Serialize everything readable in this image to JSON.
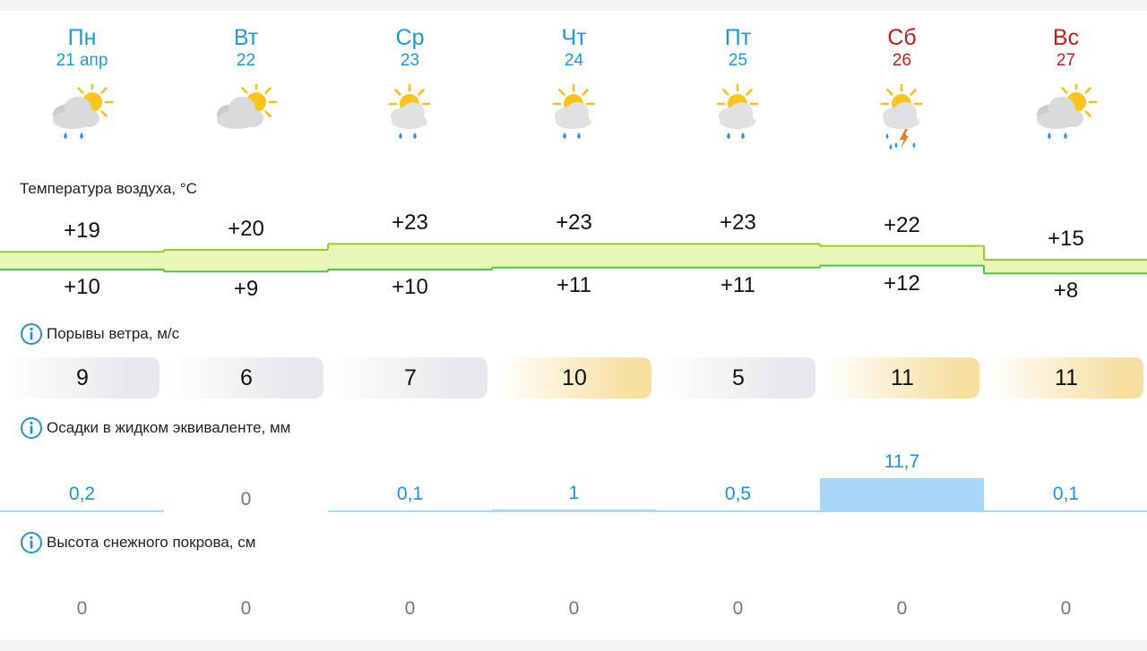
{
  "days": [
    {
      "name": "Пн",
      "date": "21 апр",
      "weekend": false,
      "icon": "partly-cloudy-rain-icon"
    },
    {
      "name": "Вт",
      "date": "22",
      "weekend": false,
      "icon": "partly-cloudy-icon"
    },
    {
      "name": "Ср",
      "date": "23",
      "weekend": false,
      "icon": "sun-cloud-rain-icon"
    },
    {
      "name": "Чт",
      "date": "24",
      "weekend": false,
      "icon": "sun-cloud-rain-icon"
    },
    {
      "name": "Пт",
      "date": "25",
      "weekend": false,
      "icon": "sun-cloud-rain-icon"
    },
    {
      "name": "Сб",
      "date": "26",
      "weekend": true,
      "icon": "sun-cloud-thunderstorm-icon"
    },
    {
      "name": "Вс",
      "date": "27",
      "weekend": true,
      "icon": "partly-cloudy-rain-icon"
    }
  ],
  "sections": {
    "temperature_label": "Температура воздуха, °C",
    "wind_label": "Порывы ветра, м/с",
    "precip_label": "Осадки в жидком эквиваленте, мм",
    "snow_label": "Высота снежного покрова, см"
  },
  "temperature": {
    "max": [
      "+19",
      "+20",
      "+23",
      "+23",
      "+23",
      "+22",
      "+15"
    ],
    "min": [
      "+10",
      "+9",
      "+10",
      "+11",
      "+11",
      "+12",
      "+8"
    ],
    "max_values": [
      19,
      20,
      23,
      23,
      23,
      22,
      15
    ],
    "min_values": [
      10,
      9,
      10,
      11,
      11,
      12,
      8
    ]
  },
  "wind": {
    "labels": [
      "9",
      "6",
      "7",
      "10",
      "5",
      "11",
      "11"
    ],
    "values": [
      9,
      6,
      7,
      10,
      5,
      11,
      11
    ],
    "strong": [
      false,
      false,
      false,
      true,
      false,
      true,
      true
    ]
  },
  "precipitation": {
    "labels": [
      "0,2",
      "0",
      "0,1",
      "1",
      "0,5",
      "11,7",
      "0,1"
    ],
    "values": [
      0.2,
      0,
      0.1,
      1,
      0.5,
      11.7,
      0.1
    ]
  },
  "snow": {
    "labels": [
      "0",
      "0",
      "0",
      "0",
      "0",
      "0",
      "0"
    ]
  },
  "colors": {
    "weekday": "#1e9ad6",
    "weekend": "#c01f1f",
    "temp_fill": "#e8f7b8",
    "temp_stroke": "#9cc92a",
    "temp_stroke_low": "#4fc24a",
    "precip_fill": "#a8d8f8",
    "info_icon": "#2a8fd0"
  }
}
